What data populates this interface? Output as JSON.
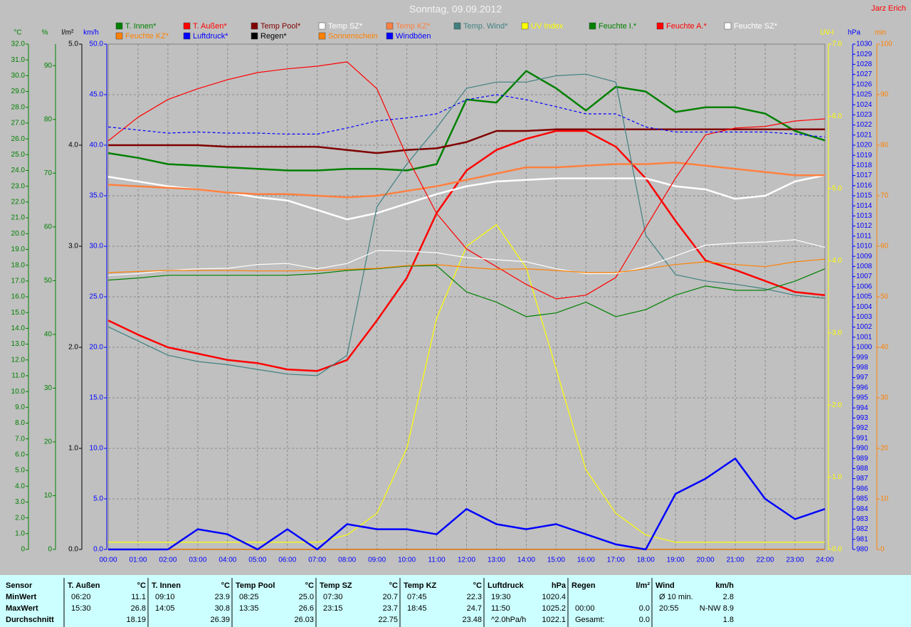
{
  "chart_data": {
    "type": "line",
    "title": "Sonntag, 09.09.2012",
    "author": "Jarz Erich",
    "grid": true,
    "x": [
      "00:00",
      "01:00",
      "02:00",
      "03:00",
      "04:00",
      "05:00",
      "06:00",
      "07:00",
      "08:00",
      "09:00",
      "10:00",
      "11:00",
      "12:00",
      "13:00",
      "14:00",
      "15:00",
      "16:00",
      "17:00",
      "18:00",
      "19:00",
      "20:00",
      "21:00",
      "22:00",
      "23:00",
      "24:00"
    ],
    "axes": [
      {
        "id": "c",
        "title": "°C",
        "side": "left",
        "color": "#008000",
        "lim": [
          0,
          32
        ],
        "ticks": [
          {
            "value": 0,
            "label": "0"
          },
          {
            "value": 1,
            "label": "1.0"
          },
          {
            "value": 2,
            "label": "2.0"
          },
          {
            "value": 3,
            "label": "3.0"
          },
          {
            "value": 4,
            "label": "4.0"
          },
          {
            "value": 5,
            "label": "5.0"
          },
          {
            "value": 6,
            "label": "6.0"
          },
          {
            "value": 7,
            "label": "7.0"
          },
          {
            "value": 8,
            "label": "8.0"
          },
          {
            "value": 9,
            "label": "9.0"
          },
          {
            "value": 10,
            "label": "10.0"
          },
          {
            "value": 11,
            "label": "11.0"
          },
          {
            "value": 12,
            "label": "12.0"
          },
          {
            "value": 13,
            "label": "13.0"
          },
          {
            "value": 14,
            "label": "14.0"
          },
          {
            "value": 15,
            "label": "15.0"
          },
          {
            "value": 16,
            "label": "16.0"
          },
          {
            "value": 17,
            "label": "17.0"
          },
          {
            "value": 18,
            "label": "18.0"
          },
          {
            "value": 19,
            "label": "19.0"
          },
          {
            "value": 20,
            "label": "20.0"
          },
          {
            "value": 21,
            "label": "21.0"
          },
          {
            "value": 22,
            "label": "22.0"
          },
          {
            "value": 23,
            "label": "23.0"
          },
          {
            "value": 24,
            "label": "24.0"
          },
          {
            "value": 25,
            "label": "25.0"
          },
          {
            "value": 26,
            "label": "26.0"
          },
          {
            "value": 27,
            "label": "27.0"
          },
          {
            "value": 28,
            "label": "28.0"
          },
          {
            "value": 29,
            "label": "29.0"
          },
          {
            "value": 30,
            "label": "30.0"
          },
          {
            "value": 31,
            "label": "31.0"
          },
          {
            "value": 32,
            "label": "32.0"
          }
        ]
      },
      {
        "id": "pct",
        "title": "%",
        "side": "left",
        "color": "#008000",
        "lim": [
          0,
          94
        ],
        "ticks": [
          0,
          10,
          20,
          30,
          40,
          50,
          60,
          70,
          80,
          90
        ]
      },
      {
        "id": "rain",
        "title": "l/m²",
        "side": "left",
        "color": "#000000",
        "lim": [
          0,
          5
        ],
        "ticks": [
          {
            "value": 0,
            "label": "0.0"
          },
          {
            "value": 1,
            "label": "1.0"
          },
          {
            "value": 2,
            "label": "2.0"
          },
          {
            "value": 3,
            "label": "3.0"
          },
          {
            "value": 4,
            "label": "4.0"
          },
          {
            "value": 5,
            "label": "5.0"
          }
        ]
      },
      {
        "id": "kmh",
        "title": "km/h",
        "side": "left",
        "color": "#0000ff",
        "lim": [
          0,
          50
        ],
        "ticks": [
          {
            "value": 0,
            "label": "0.0"
          },
          {
            "value": 5,
            "label": "5.0"
          },
          {
            "value": 10,
            "label": "10.0"
          },
          {
            "value": 15,
            "label": "15.0"
          },
          {
            "value": 20,
            "label": "20.0"
          },
          {
            "value": 25,
            "label": "25.0"
          },
          {
            "value": 30,
            "label": "30.0"
          },
          {
            "value": 35,
            "label": "35.0"
          },
          {
            "value": 40,
            "label": "40.0"
          },
          {
            "value": 45,
            "label": "45.0"
          },
          {
            "value": 50,
            "label": "50.0"
          }
        ]
      },
      {
        "id": "uv",
        "title": "UV-I",
        "side": "right",
        "color": "#ffff00",
        "lim": [
          0,
          7
        ],
        "ticks": [
          {
            "value": 0,
            "label": "0.0"
          },
          {
            "value": 1,
            "label": "1.0"
          },
          {
            "value": 2,
            "label": "2.0"
          },
          {
            "value": 3,
            "label": "3.0"
          },
          {
            "value": 4,
            "label": "4.0"
          },
          {
            "value": 5,
            "label": "5.0"
          },
          {
            "value": 6,
            "label": "6.0"
          },
          {
            "value": 7,
            "label": "7.0"
          }
        ]
      },
      {
        "id": "hpa",
        "title": "hPa",
        "side": "right",
        "color": "#0000ff",
        "lim": [
          980,
          1030
        ],
        "ticks": [
          980,
          981,
          982,
          983,
          984,
          985,
          986,
          987,
          988,
          989,
          990,
          991,
          992,
          993,
          994,
          995,
          996,
          997,
          998,
          999,
          1000,
          1001,
          1002,
          1003,
          1004,
          1005,
          1006,
          1007,
          1008,
          1009,
          1010,
          1011,
          1012,
          1013,
          1014,
          1015,
          1016,
          1017,
          1018,
          1019,
          1020,
          1021,
          1022,
          1023,
          1024,
          1025,
          1026,
          1027,
          1028,
          1029,
          1030
        ]
      },
      {
        "id": "min",
        "title": "min",
        "side": "right",
        "color": "#ff8000",
        "lim": [
          0,
          100
        ],
        "ticks": [
          0,
          10,
          20,
          30,
          40,
          50,
          60,
          70,
          80,
          90,
          100
        ]
      }
    ],
    "series": [
      {
        "name": "T. Innen*",
        "color": "#008000",
        "axis": "c",
        "thick": true,
        "values": [
          25.1,
          24.8,
          24.4,
          24.3,
          24.2,
          24.1,
          24.0,
          24.0,
          24.1,
          24.1,
          24.0,
          24.4,
          28.5,
          28.3,
          30.3,
          29.2,
          27.8,
          29.3,
          29.0,
          27.7,
          28.0,
          28.0,
          27.6,
          26.5,
          25.9
        ]
      },
      {
        "name": "T. Außen*",
        "color": "#ff0000",
        "axis": "c",
        "thick": true,
        "values": [
          14.5,
          13.6,
          12.8,
          12.4,
          12.0,
          11.8,
          11.4,
          11.3,
          12.0,
          14.5,
          17.2,
          21.3,
          24.0,
          25.3,
          26.0,
          26.5,
          26.5,
          25.5,
          23.5,
          20.8,
          18.3,
          17.7,
          17.0,
          16.3,
          16.1
        ]
      },
      {
        "name": "Temp Pool*",
        "color": "#800000",
        "axis": "c",
        "thick": true,
        "values": [
          25.6,
          25.6,
          25.6,
          25.6,
          25.5,
          25.5,
          25.5,
          25.5,
          25.3,
          25.1,
          25.3,
          25.4,
          25.8,
          26.5,
          26.5,
          26.6,
          26.6,
          26.6,
          26.6,
          26.6,
          26.6,
          26.6,
          26.6,
          26.6,
          26.6
        ]
      },
      {
        "name": "Temp SZ*",
        "color": "#ffffff",
        "axis": "c",
        "thick": true,
        "values": [
          23.6,
          23.3,
          23.0,
          22.8,
          22.6,
          22.3,
          22.1,
          21.5,
          20.9,
          21.3,
          21.9,
          22.5,
          23.0,
          23.3,
          23.4,
          23.5,
          23.5,
          23.5,
          23.5,
          23.0,
          22.8,
          22.2,
          22.4,
          23.3,
          23.7
        ]
      },
      {
        "name": "Temp KZ*",
        "color": "#ff8040",
        "axis": "c",
        "thick": true,
        "values": [
          23.1,
          23.0,
          22.9,
          22.8,
          22.6,
          22.5,
          22.5,
          22.4,
          22.3,
          22.4,
          22.7,
          23.0,
          23.4,
          23.8,
          24.2,
          24.2,
          24.3,
          24.4,
          24.4,
          24.5,
          24.3,
          24.1,
          23.9,
          23.7,
          23.7
        ]
      },
      {
        "name": "Temp. Wind*",
        "color": "#408080",
        "axis": "c",
        "values": [
          14.1,
          13.2,
          12.3,
          11.9,
          11.7,
          11.4,
          11.1,
          11.0,
          12.3,
          21.7,
          24.4,
          26.7,
          29.2,
          29.6,
          29.6,
          30.0,
          30.1,
          29.6,
          19.9,
          17.4,
          17.0,
          16.8,
          16.5,
          16.1,
          15.9
        ]
      },
      {
        "name": "UV Index",
        "color": "#ffff00",
        "axis": "uv",
        "values": [
          0.1,
          0.1,
          0.1,
          0.1,
          0.1,
          0.1,
          0.1,
          0.1,
          0.2,
          0.5,
          1.4,
          3.2,
          4.2,
          4.5,
          3.9,
          2.5,
          1.1,
          0.5,
          0.2,
          0.1,
          0.1,
          0.1,
          0.1,
          0.1,
          0.1
        ]
      },
      {
        "name": "Feuchte I.*",
        "color": "#008000",
        "axis": "pct",
        "values": [
          50.1,
          50.5,
          51.0,
          51.0,
          51.0,
          51.0,
          51.0,
          51.3,
          51.9,
          52.2,
          52.7,
          52.8,
          47.9,
          46.0,
          43.3,
          44.0,
          46.0,
          43.3,
          44.6,
          47.3,
          49.0,
          48.2,
          48.2,
          49.9,
          52.2
        ]
      },
      {
        "name": "Feuchte A.*",
        "color": "#ff0000",
        "axis": "pct",
        "values": [
          76.0,
          80.4,
          83.7,
          85.7,
          87.4,
          88.7,
          89.4,
          89.9,
          90.7,
          85.7,
          73.1,
          62.5,
          55.9,
          52.6,
          49.3,
          46.6,
          47.3,
          50.6,
          59.9,
          69.1,
          77.1,
          78.4,
          78.7,
          79.7,
          80.1
        ]
      },
      {
        "name": "Feuchte SZ*",
        "color": "#ffffff",
        "axis": "pct",
        "values": [
          51.0,
          51.3,
          51.9,
          52.2,
          52.3,
          53.0,
          53.2,
          52.2,
          53.2,
          55.6,
          55.5,
          55.2,
          54.3,
          53.9,
          53.5,
          52.2,
          51.3,
          51.3,
          52.6,
          54.6,
          56.6,
          57.0,
          57.2,
          57.6,
          56.2
        ]
      },
      {
        "name": "Feuchte KZ*",
        "color": "#ff8000",
        "axis": "pct",
        "values": [
          51.5,
          51.7,
          51.9,
          51.9,
          51.9,
          51.8,
          51.8,
          51.9,
          52.1,
          52.3,
          52.8,
          53.0,
          52.5,
          52.1,
          52.2,
          51.9,
          51.5,
          51.5,
          52.2,
          53.0,
          53.5,
          53.0,
          52.6,
          53.5,
          54.0
        ]
      },
      {
        "name": "Luftdruck*",
        "color": "#0000ff",
        "axis": "hpa",
        "dashed": true,
        "values": [
          1021.8,
          1021.5,
          1021.2,
          1021.3,
          1021.2,
          1021.2,
          1021.1,
          1021.1,
          1021.7,
          1022.4,
          1022.7,
          1023.1,
          1024.5,
          1025.0,
          1024.5,
          1023.8,
          1023.1,
          1023.1,
          1021.8,
          1021.3,
          1021.3,
          1021.3,
          1021.3,
          1021.1,
          1020.8
        ]
      },
      {
        "name": "Regen*",
        "color": "#000000",
        "axis": "rain",
        "values": [
          0,
          0,
          0,
          0,
          0,
          0,
          0,
          0,
          0,
          0,
          0,
          0,
          0,
          0,
          0,
          0,
          0,
          0,
          0,
          0,
          0,
          0,
          0,
          0,
          0
        ]
      },
      {
        "name": "Sonnenschein",
        "color": "#ff8000",
        "axis": "min",
        "values": [
          0,
          0,
          0,
          0,
          0,
          0,
          0,
          0,
          0,
          0,
          0,
          0,
          0,
          0,
          0,
          0,
          0,
          0,
          0,
          0,
          0,
          0,
          0,
          0,
          0
        ]
      },
      {
        "name": "Windböen",
        "color": "#0000ff",
        "axis": "kmh",
        "thick": true,
        "values": [
          0,
          0,
          0,
          2.0,
          1.5,
          0,
          2.0,
          0,
          2.5,
          2.0,
          2.0,
          1.5,
          4.0,
          2.5,
          2.0,
          2.5,
          1.5,
          0.5,
          0,
          5.5,
          7.0,
          9.0,
          5.0,
          3.0,
          4.0
        ]
      }
    ]
  },
  "stats": {
    "row_labels": [
      "Sensor",
      "MinWert",
      "MaxWert",
      "Durchschnitt"
    ],
    "columns": [
      {
        "name": "T. Außen",
        "unit": "°C",
        "rows": [
          [
            "06:20",
            "11.1"
          ],
          [
            "15:30",
            "26.8"
          ],
          [
            null,
            "18.19"
          ]
        ]
      },
      {
        "name": "T. Innen",
        "unit": "°C",
        "rows": [
          [
            "09:10",
            "23.9"
          ],
          [
            "14:05",
            "30.8"
          ],
          [
            null,
            "26.39"
          ]
        ]
      },
      {
        "name": "Temp Pool",
        "unit": "°C",
        "rows": [
          [
            "08:25",
            "25.0"
          ],
          [
            "13:35",
            "26.6"
          ],
          [
            null,
            "26.03"
          ]
        ]
      },
      {
        "name": "Temp SZ",
        "unit": "°C",
        "rows": [
          [
            "07:30",
            "20.7"
          ],
          [
            "23:15",
            "23.7"
          ],
          [
            null,
            "22.75"
          ]
        ]
      },
      {
        "name": "Temp KZ",
        "unit": "°C",
        "rows": [
          [
            "07:45",
            "22.3"
          ],
          [
            "18:45",
            "24.7"
          ],
          [
            null,
            "23.48"
          ]
        ]
      },
      {
        "name": "Luftdruck",
        "unit": "hPa",
        "rows": [
          [
            "19:30",
            "1020.4"
          ],
          [
            "11:50",
            "1025.2"
          ],
          [
            "^2.0hPa/h",
            "1022.1"
          ]
        ]
      },
      {
        "name": "Regen",
        "unit": "l/m²",
        "rows": [
          [
            null,
            null
          ],
          [
            "00:00",
            "0.0"
          ],
          [
            "Gesamt:",
            "0.0"
          ]
        ]
      },
      {
        "name": "Wind",
        "unit": "km/h",
        "rows": [
          [
            "Ø 10 min.",
            "2.8"
          ],
          [
            "20:55",
            "N-NW 8.9"
          ],
          [
            null,
            "1.8"
          ]
        ]
      }
    ]
  }
}
